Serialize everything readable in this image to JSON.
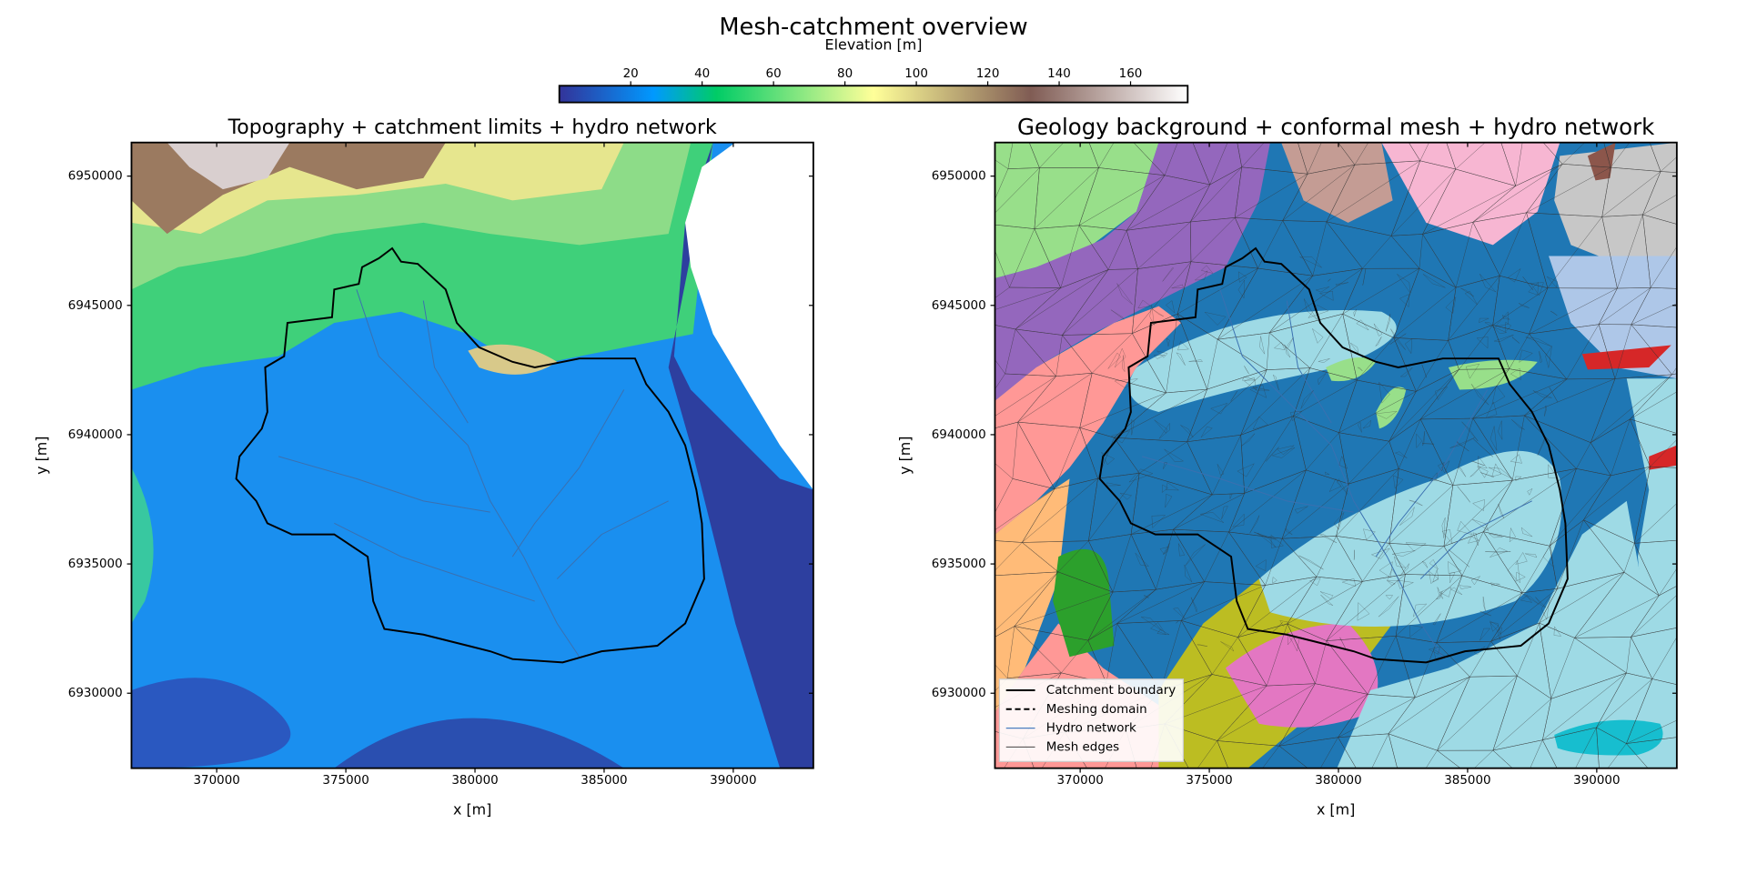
{
  "title": "Mesh-catchment overview",
  "chart_data": [
    {
      "type": "map",
      "title": "Topography + catchment limits + hydro network",
      "xlabel": "x [m]",
      "ylabel": "y [m]",
      "xlim": [
        366700,
        393100
      ],
      "ylim": [
        6927100,
        6951300
      ],
      "xticks": [
        370000,
        375000,
        380000,
        385000,
        390000
      ],
      "yticks": [
        6930000,
        6935000,
        6940000,
        6945000,
        6950000
      ],
      "colorbar": {
        "label": "Elevation [m]",
        "cmap": "terrain",
        "lim": [
          0,
          176
        ],
        "ticks": [
          20,
          40,
          60,
          80,
          100,
          120,
          140,
          160
        ]
      }
    },
    {
      "type": "map",
      "title": "Geology background + conformal mesh + hydro network",
      "xlabel": "x [m]",
      "ylabel": "y [m]",
      "xlim": [
        366700,
        393100
      ],
      "ylim": [
        6927100,
        6951300
      ],
      "xticks": [
        370000,
        375000,
        380000,
        385000,
        390000
      ],
      "yticks": [
        6930000,
        6935000,
        6940000,
        6945000,
        6950000
      ],
      "legend": {
        "loc": "lower left",
        "entries": [
          {
            "label": "Catchment boundary",
            "color": "#000000",
            "style": "solid"
          },
          {
            "label": "Meshing domain",
            "color": "#000000",
            "style": "dashed"
          },
          {
            "label": "Hydro network",
            "color": "#4a7fc0",
            "style": "solid"
          },
          {
            "label": "Mesh edges",
            "color": "#444444",
            "style": "solid"
          }
        ]
      }
    }
  ]
}
